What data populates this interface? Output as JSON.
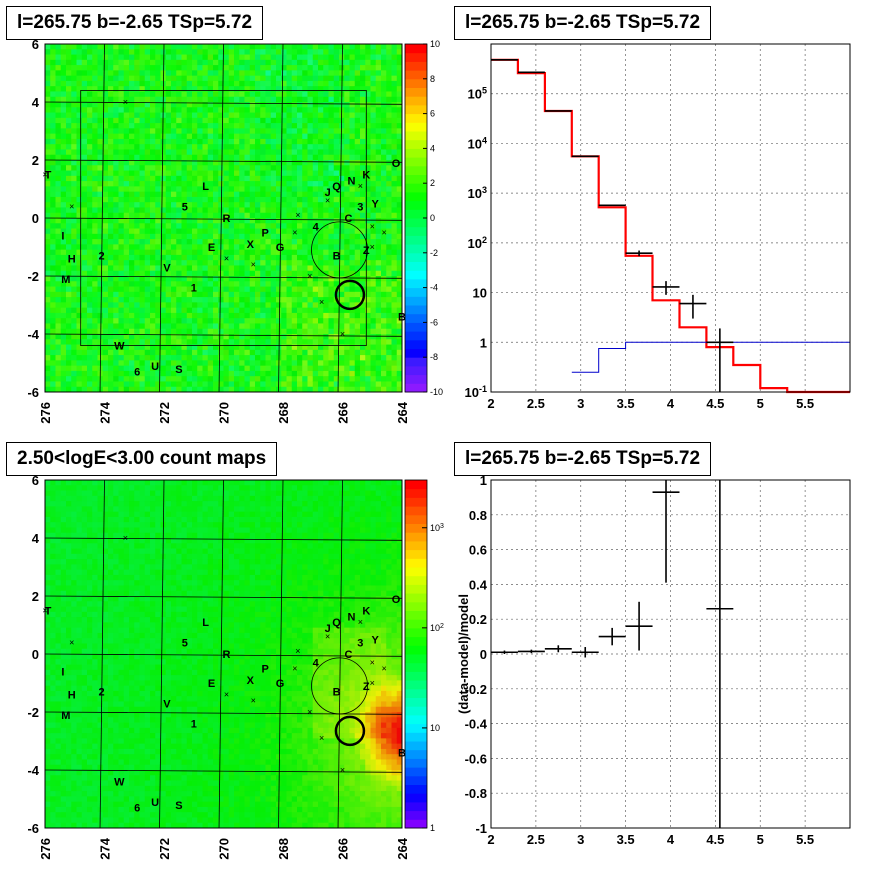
{
  "panels": {
    "tl": {
      "title": "l=265.75 b=-2.65 TSp=5.72"
    },
    "tr": {
      "title": "l=265.75 b=-2.65 TSp=5.72"
    },
    "bl": {
      "title": "2.50<logE<3.00 count maps"
    },
    "br": {
      "title": "l=265.75 b=-2.65 TSp=5.72"
    }
  },
  "colors": {
    "accent_red": "#ff0000",
    "accent_blue": "#0000cc",
    "data_black": "#000000"
  },
  "chart_data": [
    {
      "id": "residual-map",
      "type": "heatmap",
      "title": "l=265.75 b=-2.65 TSp=5.72",
      "x_ticks": [
        "276",
        "274",
        "272",
        "270",
        "268",
        "266",
        "264"
      ],
      "y_ticks": [
        "6",
        "4",
        "2",
        "0",
        "-2",
        "-4",
        "-6"
      ],
      "xlim": [
        276,
        264
      ],
      "ylim": [
        -6,
        6
      ],
      "colorbar_ticks": [
        "10",
        "8",
        "6",
        "4",
        "2",
        "0",
        "-2",
        "-4",
        "-6",
        "-8",
        "-10"
      ],
      "colorbar_range": [
        -10,
        10
      ],
      "grid": true,
      "sources": [
        {
          "label": "T",
          "l": 275.9,
          "b": 1.5
        },
        {
          "label": "L",
          "l": 270.6,
          "b": 1.1
        },
        {
          "label": "5",
          "l": 271.3,
          "b": 0.4
        },
        {
          "label": "R",
          "l": 269.9,
          "b": 0.0
        },
        {
          "label": "I",
          "l": 275.4,
          "b": -0.6
        },
        {
          "label": "2",
          "l": 274.1,
          "b": -1.3
        },
        {
          "label": "H",
          "l": 275.1,
          "b": -1.4
        },
        {
          "label": "M",
          "l": 275.3,
          "b": -2.1
        },
        {
          "label": "E",
          "l": 270.4,
          "b": -1.0
        },
        {
          "label": "X",
          "l": 269.1,
          "b": -0.9
        },
        {
          "label": "P",
          "l": 268.6,
          "b": -0.5
        },
        {
          "label": "G",
          "l": 268.1,
          "b": -1.0
        },
        {
          "label": "4",
          "l": 266.9,
          "b": -0.3
        },
        {
          "label": "B",
          "l": 266.2,
          "b": -1.3
        },
        {
          "label": "Z",
          "l": 265.2,
          "b": -1.1
        },
        {
          "label": "J",
          "l": 266.5,
          "b": 0.9
        },
        {
          "label": "Q",
          "l": 266.2,
          "b": 1.1
        },
        {
          "label": "N",
          "l": 265.7,
          "b": 1.3
        },
        {
          "label": "K",
          "l": 265.2,
          "b": 1.5
        },
        {
          "label": "O",
          "l": 264.2,
          "b": 1.9
        },
        {
          "label": "3",
          "l": 265.4,
          "b": 0.4
        },
        {
          "label": "Y",
          "l": 264.9,
          "b": 0.5
        },
        {
          "label": "C",
          "l": 265.8,
          "b": 0.0
        },
        {
          "label": "V",
          "l": 271.9,
          "b": -1.7
        },
        {
          "label": "1",
          "l": 271.0,
          "b": -2.4
        },
        {
          "label": "W",
          "l": 273.5,
          "b": -4.4
        },
        {
          "label": "U",
          "l": 272.3,
          "b": -5.1
        },
        {
          "label": "S",
          "l": 271.5,
          "b": -5.2
        },
        {
          "label": "6",
          "l": 272.9,
          "b": -5.3
        },
        {
          "label": "B",
          "l": 264.0,
          "b": -3.4
        }
      ]
    },
    {
      "id": "spectrum",
      "type": "line",
      "title": "l=265.75 b=-2.65 TSp=5.72",
      "xlim": [
        2,
        6
      ],
      "ylim": [
        0.1,
        1000000
      ],
      "log_y": true,
      "x_ticks": [
        "2",
        "2.5",
        "3",
        "3.5",
        "4",
        "4.5",
        "5",
        "5.5"
      ],
      "y_ticks": [
        "10^-1",
        "1",
        "10",
        "10^2",
        "10^3",
        "10^4",
        "10^5"
      ],
      "grid": true,
      "series": [
        {
          "color": "#ff0000",
          "steps": [
            [
              2.0,
              2.3,
              480000
            ],
            [
              2.3,
              2.6,
              260000
            ],
            [
              2.6,
              2.9,
              45000
            ],
            [
              2.9,
              3.2,
              5500
            ],
            [
              3.2,
              3.5,
              520
            ],
            [
              3.5,
              3.8,
              55
            ],
            [
              3.8,
              4.1,
              7
            ],
            [
              4.1,
              4.4,
              2
            ],
            [
              4.4,
              4.7,
              0.8
            ],
            [
              4.7,
              5.0,
              0.35
            ],
            [
              5.0,
              5.3,
              0.12
            ],
            [
              5.3,
              6.0,
              0.1
            ]
          ]
        },
        {
          "color": "#0000cc",
          "steps": [
            [
              2.9,
              3.2,
              0.25
            ],
            [
              3.2,
              3.5,
              0.75
            ],
            [
              3.5,
              6.0,
              1.0
            ]
          ]
        },
        {
          "color": "#000000",
          "points": [
            [
              2.15,
              480000,
              0.15,
              0
            ],
            [
              2.45,
              270000,
              0.15,
              0
            ],
            [
              2.75,
              45000,
              0.15,
              0
            ],
            [
              3.05,
              5500,
              0.15,
              0
            ],
            [
              3.35,
              570,
              0.15,
              0
            ],
            [
              3.65,
              62,
              0.15,
              8
            ],
            [
              3.95,
              13,
              0.15,
              4
            ],
            [
              4.25,
              6,
              0.15,
              3
            ],
            [
              4.55,
              1,
              0.15,
              0.9
            ]
          ]
        }
      ]
    },
    {
      "id": "count-map",
      "type": "heatmap",
      "title": "2.50<logE<3.00 count maps",
      "x_ticks": [
        "276",
        "274",
        "272",
        "270",
        "268",
        "266",
        "264"
      ],
      "y_ticks": [
        "6",
        "4",
        "2",
        "0",
        "-2",
        "-4",
        "-6"
      ],
      "xlim": [
        276,
        264
      ],
      "ylim": [
        -6,
        6
      ],
      "colorbar_ticks": [
        "10^3",
        "10^2",
        "10",
        "1"
      ],
      "colorbar_range": [
        1,
        3000
      ],
      "log_color": true,
      "grid": true
    },
    {
      "id": "residual-ratio",
      "type": "scatter",
      "title": "l=265.75 b=-2.65 TSp=5.72",
      "ylabel": "(data-model)/model",
      "xlim": [
        2,
        6
      ],
      "ylim": [
        -1,
        1
      ],
      "x_ticks": [
        "2",
        "2.5",
        "3",
        "3.5",
        "4",
        "4.5",
        "5",
        "5.5"
      ],
      "y_ticks": [
        "1",
        "0.8",
        "0.6",
        "0.4",
        "0.2",
        "0",
        "-0.2",
        "-0.4",
        "-0.6",
        "-0.8",
        "-1"
      ],
      "grid": true,
      "points": [
        [
          2.15,
          0.01,
          0.15,
          0.01
        ],
        [
          2.45,
          0.015,
          0.15,
          0.01
        ],
        [
          2.75,
          0.03,
          0.15,
          0.02
        ],
        [
          3.05,
          0.01,
          0.15,
          0.03
        ],
        [
          3.35,
          0.1,
          0.15,
          0.05
        ],
        [
          3.65,
          0.16,
          0.15,
          0.14
        ],
        [
          3.95,
          0.93,
          0.15,
          0.52
        ],
        [
          4.55,
          0.26,
          0.15,
          1.3
        ]
      ]
    }
  ]
}
